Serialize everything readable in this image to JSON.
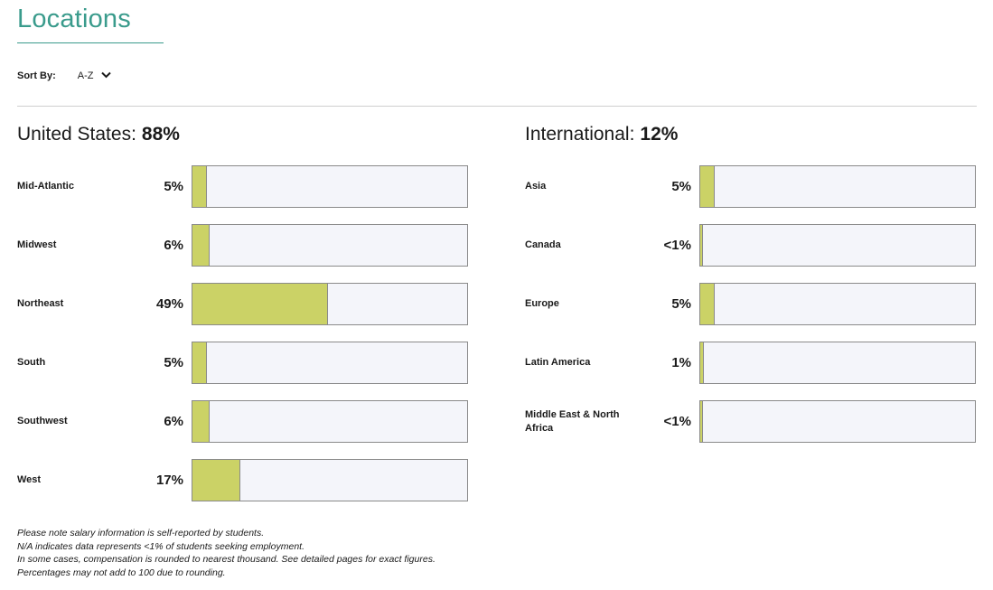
{
  "title": "Locations",
  "sort": {
    "label": "Sort By:",
    "value": "A-Z"
  },
  "chart_data": [
    {
      "type": "bar",
      "title": "United States:",
      "total": "88%",
      "xlim": [
        0,
        100
      ],
      "categories": [
        "Mid-Atlantic",
        "Midwest",
        "Northeast",
        "South",
        "Southwest",
        "West"
      ],
      "labels": [
        "5%",
        "6%",
        "49%",
        "5%",
        "6%",
        "17%"
      ],
      "values": [
        5,
        6,
        49,
        5,
        6,
        17
      ]
    },
    {
      "type": "bar",
      "title": "International:",
      "total": "12%",
      "xlim": [
        0,
        100
      ],
      "categories": [
        "Asia",
        "Canada",
        "Europe",
        "Latin America",
        "Middle East & North Africa"
      ],
      "labels": [
        "5%",
        "<1%",
        "5%",
        "1%",
        "<1%"
      ],
      "values": [
        5,
        0.5,
        5,
        1,
        0.5
      ]
    }
  ],
  "colors": {
    "accent": "#3a9b8c",
    "bar": "#cbd266",
    "track": "#f4f5fa",
    "border": "#8a8a8a"
  },
  "icons": {
    "sort": "chevron-down-icon"
  },
  "notes": [
    "Please note salary information is self-reported by students.",
    "N/A indicates data represents <1% of students seeking employment.",
    "In some cases, compensation is rounded to nearest thousand. See detailed pages for exact figures.",
    "Percentages may not add to 100 due to rounding."
  ]
}
